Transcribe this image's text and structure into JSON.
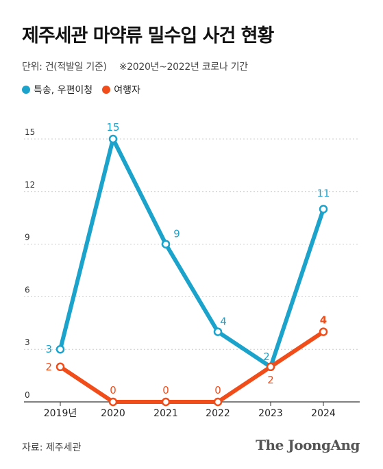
{
  "title": "제주세관 마약류 밀수입 사건 현황",
  "subtitle": {
    "unit": "단위: 건(적발일 기준)",
    "note": "※2020년~2022년 코로나 기간"
  },
  "source": "자료: 제주세관",
  "brand": "The JoongAng",
  "colors": {
    "series1": "#1ba3cc",
    "series2": "#f04d1a",
    "grid": "#cccccc",
    "axis": "#333333"
  },
  "chart_data": {
    "type": "line",
    "categories": [
      "2019년",
      "2020",
      "2021",
      "2022",
      "2023",
      "2024"
    ],
    "series": [
      {
        "name": "특송, 우편이청",
        "values": [
          3,
          15,
          9,
          4,
          2,
          11
        ]
      },
      {
        "name": "여행자",
        "values": [
          2,
          0,
          0,
          0,
          2,
          4
        ]
      }
    ],
    "yticks": [
      "0",
      "3",
      "6",
      "9",
      "12",
      "15"
    ],
    "ylim": [
      0,
      15
    ],
    "grid": "horizontal-dashed",
    "legend": "top-left",
    "title": "제주세관 마약류 밀수입 사건 현황",
    "xlabel": "",
    "ylabel": ""
  }
}
